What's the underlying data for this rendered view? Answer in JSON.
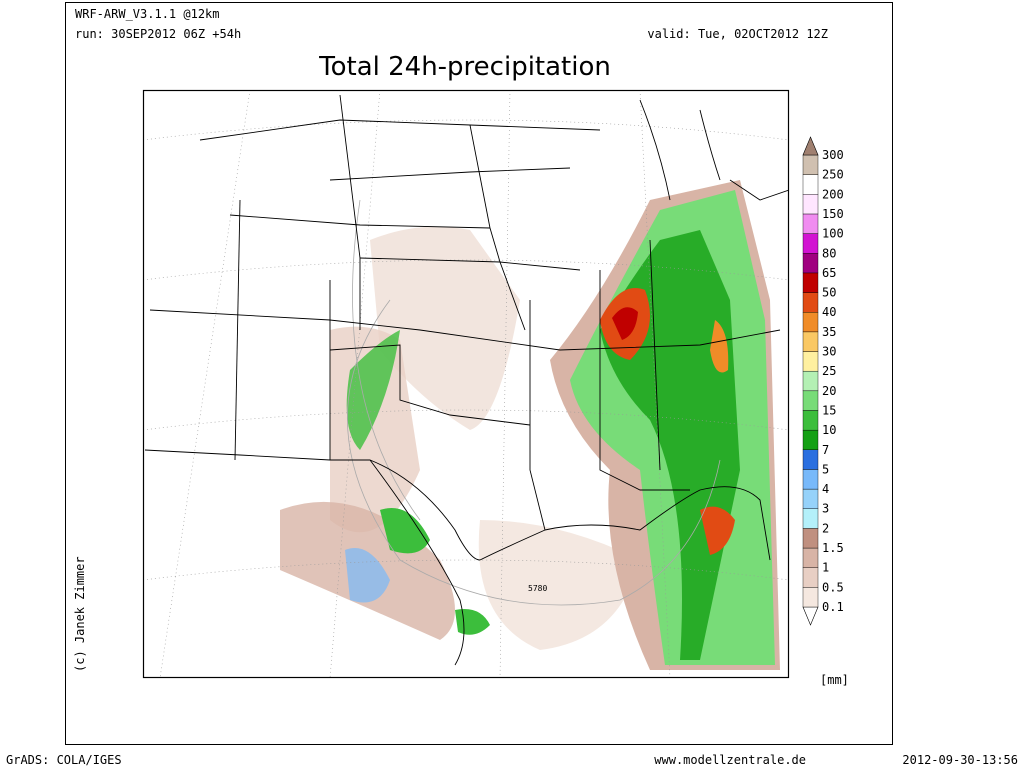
{
  "header": {
    "model": "WRF-ARW_V3.1.1 @12km",
    "run": "run: 30SEP2012 06Z +54h",
    "valid": "valid: Tue, 02OCT2012 12Z",
    "title": "Total 24h-precipitation"
  },
  "legend": {
    "levels": [
      0.1,
      0.5,
      1,
      1.5,
      2,
      3,
      4,
      5,
      7,
      10,
      15,
      20,
      25,
      30,
      35,
      40,
      50,
      65,
      80,
      100,
      150,
      200,
      250,
      300
    ],
    "colors": [
      "#ffffff",
      "#f5e8e0",
      "#e8cfc4",
      "#d8b4a6",
      "#c09080",
      "#b4f0fa",
      "#96d2fa",
      "#78b9fa",
      "#2a6fe0",
      "#14a014",
      "#3cbe3c",
      "#78dc78",
      "#b4f0b4",
      "#fff0a0",
      "#fac864",
      "#f08c28",
      "#e14b14",
      "#c00000",
      "#a00080",
      "#d214d2",
      "#f08cf0",
      "#ffe6ff",
      "#ffffff",
      "#d0c0b0",
      "#a08070"
    ],
    "unit": "[mm]"
  },
  "map": {
    "contour_label": "5780"
  },
  "credit": "(c) Janek Zimmer",
  "footer": {
    "left": "GrADS: COLA/IGES",
    "center": "www.modellzentrale.de",
    "right": "2012-09-30-13:56"
  }
}
